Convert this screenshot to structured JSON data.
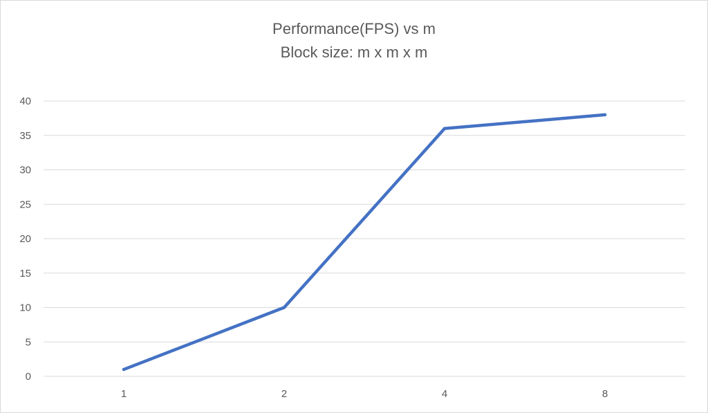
{
  "chart_data": {
    "type": "line",
    "title": "Performance(FPS)  vs m",
    "subtitle": "Block size: m x m x m",
    "xlabel": "",
    "ylabel": "",
    "categories": [
      "1",
      "2",
      "4",
      "8"
    ],
    "series": [
      {
        "values": [
          1,
          10,
          36,
          38
        ],
        "color": "#4472C4"
      }
    ],
    "ylim": [
      0,
      40
    ],
    "yticks": [
      0,
      5,
      10,
      15,
      20,
      25,
      30,
      35,
      40
    ],
    "grid": "horizontal",
    "legend": "none"
  }
}
